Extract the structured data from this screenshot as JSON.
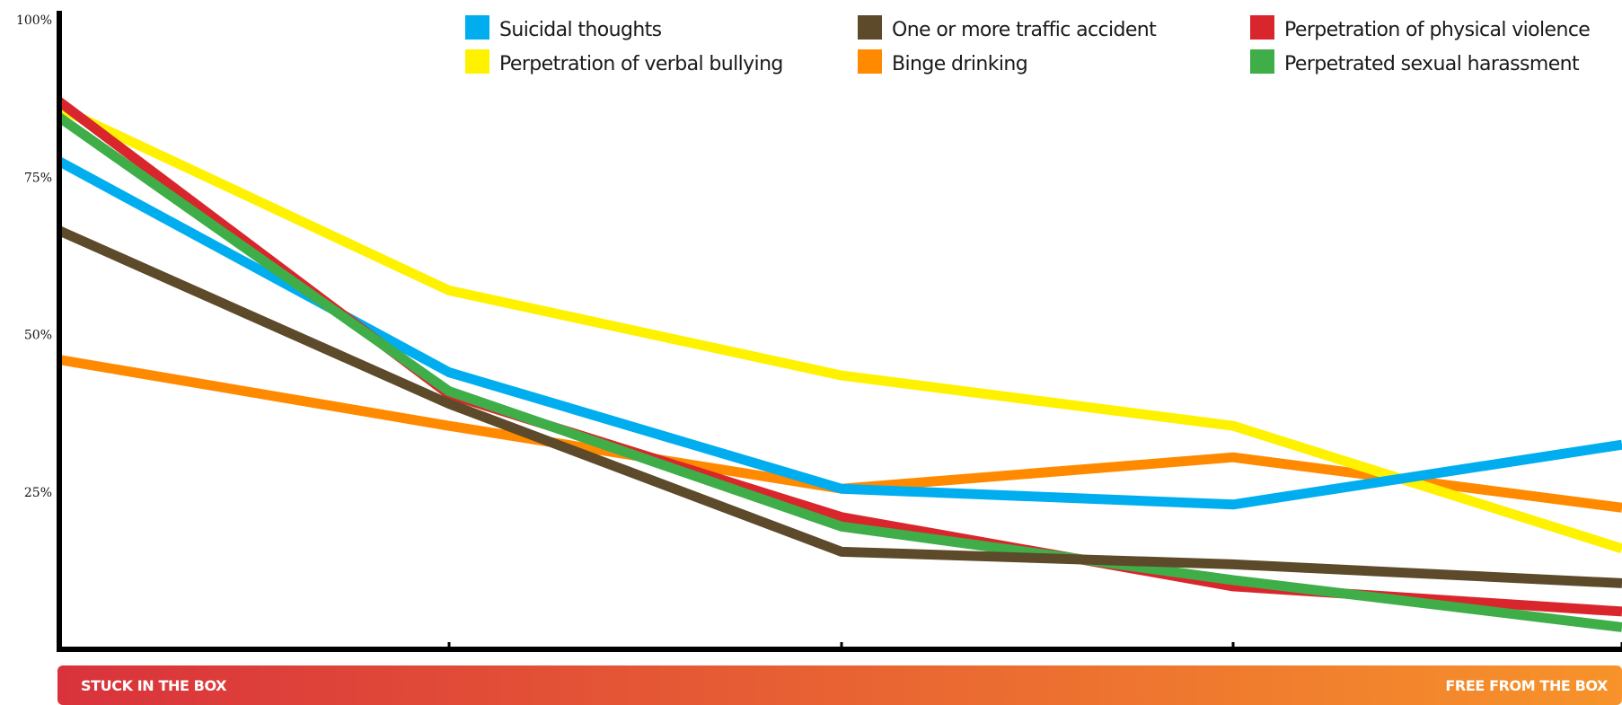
{
  "chart_data": {
    "type": "line",
    "title": "",
    "xlabel": "",
    "ylabel": "",
    "ylim": [
      0,
      100
    ],
    "grid": false,
    "legend_placement": "top",
    "x": [
      1,
      2,
      3,
      4,
      5
    ],
    "y_ticks": [
      {
        "value": 100,
        "label": "100%"
      },
      {
        "value": 75,
        "label": "75%"
      },
      {
        "value": 50,
        "label": "50%"
      },
      {
        "value": 25,
        "label": "25%"
      }
    ],
    "series": [
      {
        "name": "Suicidal thoughts",
        "color": "#00aeef",
        "values": [
          77.5,
          44,
          25.5,
          23,
          32.5
        ]
      },
      {
        "name": "One or more traffic accident",
        "color": "#5c4a2a",
        "values": [
          66.5,
          39,
          15.5,
          13.5,
          10.5
        ]
      },
      {
        "name": "Perpetration of physical violence",
        "color": "#d9262c",
        "values": [
          87,
          40.5,
          21,
          10,
          6
        ]
      },
      {
        "name": "Perpetration of verbal bullying",
        "color": "#fff200",
        "values": [
          86,
          57,
          43.5,
          35.5,
          16
        ]
      },
      {
        "name": "Binge drinking",
        "color": "#ff8a00",
        "values": [
          46,
          35.5,
          25.5,
          30.5,
          22.5
        ]
      },
      {
        "name": "Perpetrated sexual harassment",
        "color": "#3fae49",
        "values": [
          84.5,
          41,
          19.5,
          11,
          3.5
        ]
      }
    ],
    "bottom_band": {
      "left_label": "STUCK IN THE BOX",
      "right_label": "FREE FROM THE BOX",
      "gradient_start": "#d9323c",
      "gradient_end": "#f7932a"
    }
  }
}
